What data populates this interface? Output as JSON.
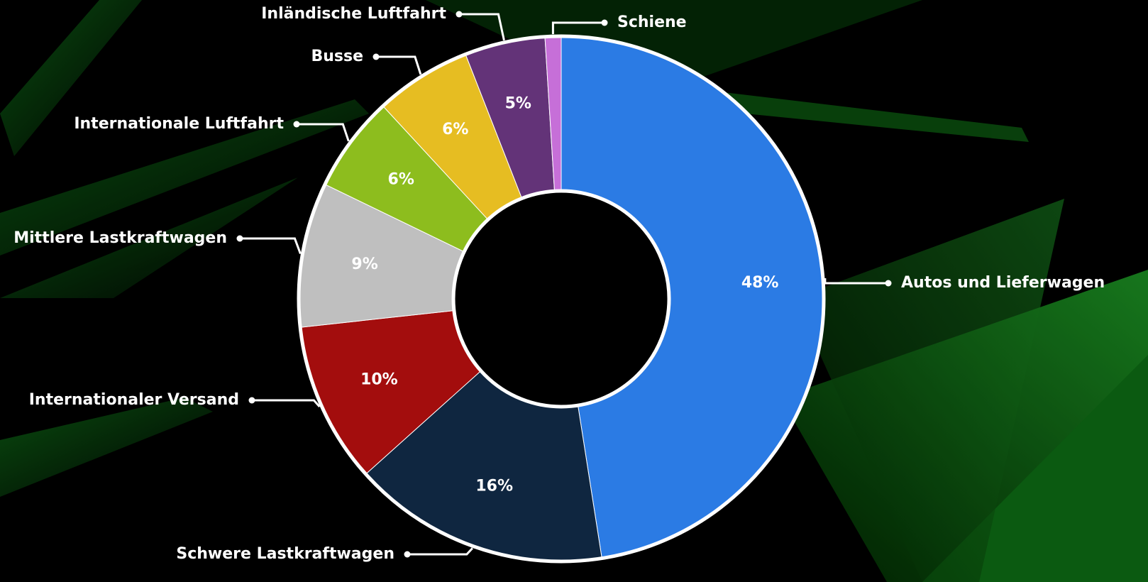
{
  "chart_data": {
    "type": "donut",
    "categories": [
      "Autos und Lieferwagen",
      "Schwere Lastkraftwagen",
      "Internationaler Versand",
      "Mittlere Lastkraftwagen",
      "Internationale Luftfahrt",
      "Busse",
      "Inländische Luftfahrt",
      "Schiene"
    ],
    "values": [
      48,
      16,
      10,
      9,
      6,
      6,
      5,
      1
    ],
    "value_labels": [
      "48%",
      "16%",
      "10%",
      "9%",
      "6%",
      "6%",
      "5%",
      null
    ],
    "colors": [
      "#2b7be4",
      "#0f2640",
      "#a30d0d",
      "#bfbfbf",
      "#8dbd1e",
      "#e6bd22",
      "#633378",
      "#c66fd8"
    ]
  }
}
